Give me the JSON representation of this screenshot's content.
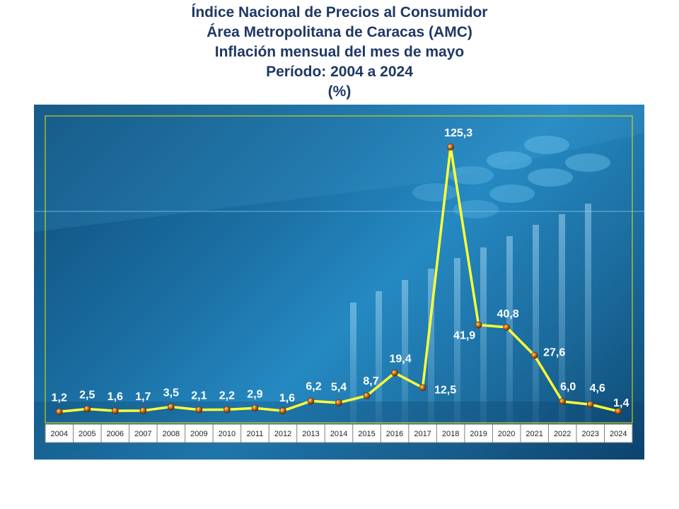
{
  "title_lines": [
    "Índice Nacional de Precios al Consumidor",
    "Área Metropolitana de Caracas (AMC)",
    "Inflación mensual del mes de mayo",
    "Período: 2004 a 2024",
    "(%)"
  ],
  "colors": {
    "title": "#1f3864",
    "line": "#ffff33",
    "marker": "#b35a0f",
    "label": "#ffffff"
  },
  "chart_data": {
    "type": "line",
    "title": "Índice Nacional de Precios al Consumidor Área Metropolitana de Caracas (AMC) Inflación mensual del mes de mayo Período: 2004 a 2024",
    "ylabel": "(%)",
    "xlabel": "",
    "grid": false,
    "ylim": [
      0,
      125.3
    ],
    "categories": [
      "2004",
      "2005",
      "2006",
      "2007",
      "2008",
      "2009",
      "2010",
      "2011",
      "2012",
      "2013",
      "2014",
      "2015",
      "2016",
      "2017",
      "2018",
      "2019",
      "2020",
      "2021",
      "2022",
      "2023",
      "2024"
    ],
    "values": [
      1.2,
      2.5,
      1.6,
      1.7,
      3.5,
      2.1,
      2.2,
      2.9,
      1.6,
      6.2,
      5.4,
      8.7,
      19.4,
      12.5,
      125.3,
      41.9,
      40.8,
      27.6,
      6.0,
      4.6,
      1.4
    ],
    "data_labels": [
      "1,2",
      "2,5",
      "1,6",
      "1,7",
      "3,5",
      "2,1",
      "2,2",
      "2,9",
      "1,6",
      "6,2",
      "5,4",
      "8,7",
      "19,4",
      "12,5",
      "125,3",
      "41,9",
      "40,8",
      "27,6",
      "6,0",
      "4,6",
      "1,4"
    ]
  }
}
